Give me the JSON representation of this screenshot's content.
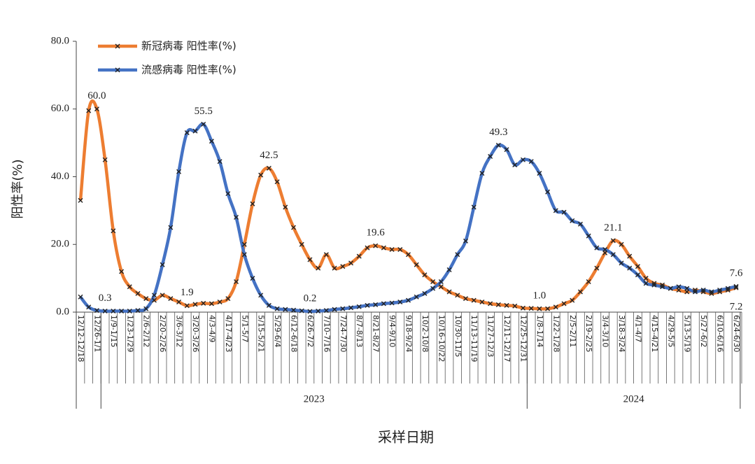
{
  "chart_data": {
    "type": "line",
    "ylabel": "阳性率(%)",
    "xlabel": "采样日期",
    "ylim": [
      0,
      80
    ],
    "yticks": [
      {
        "value": 0,
        "label": "0.0"
      },
      {
        "value": 20,
        "label": "20.0"
      },
      {
        "value": 40,
        "label": "40.0"
      },
      {
        "value": 60,
        "label": "60.0"
      },
      {
        "value": 80,
        "label": "80.0"
      }
    ],
    "legend": "top-left",
    "categories": [
      "12/12-12/18",
      null,
      "12/26-1/1",
      null,
      "1/9-1/15",
      null,
      "1/23-1/29",
      null,
      "2/6-2/12",
      null,
      "2/20-2/26",
      null,
      "3/6-3/12",
      null,
      "3/20-3/26",
      null,
      "4/3-4/9",
      null,
      "4/17-4/23",
      null,
      "5/1-5/7",
      null,
      "5/15-5/21",
      null,
      "5/29-6/4",
      null,
      "6/12-6/18",
      null,
      "6/26-7/2",
      null,
      "7/10-7/16",
      null,
      "7/24-7/30",
      null,
      "8/7-8/13",
      null,
      "8/21-8/27",
      null,
      "9/4-9/10",
      null,
      "9/18-9/24",
      null,
      "10/2-10/8",
      null,
      "10/16-10/22",
      null,
      "10/30-11/5",
      null,
      "11/13-11/19",
      null,
      "11/27-12/3",
      null,
      "12/11-12/17",
      null,
      "12/25-12/31",
      null,
      "1/8-1/14",
      null,
      "1/22-1/28",
      null,
      "2/5-2/11",
      null,
      "2/19-2/25",
      null,
      "3/4-3/10",
      null,
      "3/18-3/24",
      null,
      "4/1-4/7",
      null,
      "4/15-4/21",
      null,
      "4/29-5/5",
      null,
      "5/13-5/19",
      null,
      "5/27-6/2",
      null,
      "6/10-6/16",
      null,
      "6/24-6/30"
    ],
    "x_groups": [
      {
        "label": "2023",
        "start": 3,
        "end": 54
      },
      {
        "label": "2024",
        "start": 55,
        "end": 80
      }
    ],
    "series": [
      {
        "name": "新冠病毒 阳性率(%)",
        "color": "#ed7d31",
        "values": [
          33,
          59.5,
          60,
          45,
          24,
          12,
          7.5,
          5.5,
          4,
          3.5,
          5,
          4,
          3,
          1.9,
          2.3,
          2.6,
          2.5,
          3,
          4,
          9,
          20,
          32,
          40.5,
          42.5,
          38.5,
          31,
          25,
          20,
          15.5,
          13,
          17,
          13,
          13.5,
          14.5,
          16.5,
          19,
          19.6,
          19,
          18.5,
          18.5,
          17,
          14,
          11,
          9,
          7.5,
          6,
          5,
          4,
          3.5,
          3,
          2.5,
          2.2,
          2,
          1.8,
          1.2,
          1.1,
          1.0,
          1.0,
          1.5,
          2.5,
          3.5,
          6,
          9,
          13,
          17.5,
          21.1,
          20,
          16.5,
          13.5,
          10,
          8.5,
          8,
          7,
          6.5,
          6,
          6.5,
          6,
          5.5,
          6,
          6.5,
          7.2
        ],
        "value_labels": [
          null,
          null,
          "60.0",
          null,
          null,
          null,
          null,
          null,
          null,
          null,
          null,
          null,
          null,
          "1.9",
          null,
          null,
          null,
          null,
          null,
          null,
          null,
          null,
          null,
          "42.5",
          null,
          null,
          null,
          null,
          null,
          null,
          null,
          null,
          null,
          null,
          null,
          null,
          "19.6",
          null,
          null,
          null,
          null,
          null,
          null,
          null,
          null,
          null,
          null,
          null,
          null,
          null,
          null,
          null,
          null,
          null,
          null,
          null,
          "1.0",
          null,
          null,
          null,
          null,
          null,
          null,
          null,
          null,
          "21.1",
          null,
          null,
          null,
          null,
          null,
          null,
          null,
          null,
          null,
          null,
          null,
          null,
          null,
          null,
          "7.2"
        ]
      },
      {
        "name": "流感病毒 阳性率(%)",
        "color": "#4472c4",
        "values": [
          4.5,
          1.5,
          0.5,
          0.3,
          0.3,
          0.3,
          0.3,
          0.5,
          1,
          5,
          14,
          25,
          41.5,
          53,
          53.5,
          55.5,
          50.5,
          44.5,
          35,
          28,
          17,
          10,
          5,
          2,
          1,
          0.8,
          0.6,
          0.4,
          0.2,
          0.3,
          0.5,
          0.8,
          1,
          1.3,
          1.6,
          2,
          2.2,
          2.5,
          2.7,
          3,
          3.5,
          4.5,
          5.5,
          7,
          9,
          12.5,
          17,
          21,
          31,
          41,
          46,
          49.3,
          48,
          43.5,
          45,
          44.5,
          41,
          35.5,
          30,
          29.5,
          27,
          26,
          22.5,
          19,
          18.5,
          17,
          14.5,
          13,
          11,
          8.5,
          8,
          7.5,
          7,
          7.5,
          7,
          6,
          6.5,
          6,
          6.5,
          7,
          7.6
        ],
        "value_labels": [
          null,
          null,
          null,
          "0.3",
          null,
          null,
          null,
          null,
          null,
          null,
          null,
          null,
          null,
          null,
          null,
          "55.5",
          null,
          null,
          null,
          null,
          null,
          null,
          null,
          null,
          null,
          null,
          null,
          null,
          "0.2",
          null,
          null,
          null,
          null,
          null,
          null,
          null,
          null,
          null,
          null,
          null,
          null,
          null,
          null,
          null,
          null,
          null,
          null,
          null,
          null,
          null,
          null,
          "49.3",
          null,
          null,
          null,
          null,
          null,
          null,
          null,
          null,
          null,
          null,
          null,
          null,
          null,
          null,
          null,
          null,
          null,
          null,
          null,
          null,
          null,
          null,
          null,
          null,
          null,
          null,
          null,
          null,
          "7.6"
        ]
      }
    ]
  }
}
